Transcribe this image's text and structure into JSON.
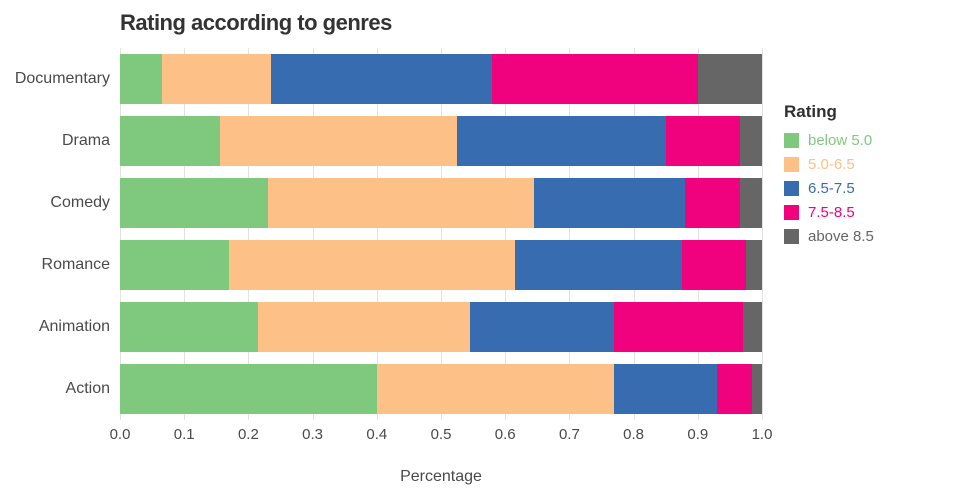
{
  "chart_data": {
    "type": "bar",
    "orientation": "horizontal_stacked",
    "title": "Rating according to genres",
    "xlabel": "Percentage",
    "ylabel": "",
    "legend_title": "Rating",
    "legend_position": "right",
    "grid": "vertical-light-gray",
    "xlim": [
      0.0,
      1.0
    ],
    "x_ticks": [
      "0.0",
      "0.1",
      "0.2",
      "0.3",
      "0.4",
      "0.5",
      "0.6",
      "0.7",
      "0.8",
      "0.9",
      "1.0"
    ],
    "categories": [
      "Documentary",
      "Drama",
      "Comedy",
      "Romance",
      "Animation",
      "Action"
    ],
    "series": [
      {
        "name": "below 5.0",
        "color": "#7fc97f",
        "values": [
          0.065,
          0.155,
          0.23,
          0.17,
          0.215,
          0.4
        ]
      },
      {
        "name": "5.0-6.5",
        "color": "#fdc086",
        "values": [
          0.17,
          0.37,
          0.415,
          0.445,
          0.33,
          0.37
        ]
      },
      {
        "name": "6.5-7.5",
        "color": "#386cb0",
        "values": [
          0.345,
          0.325,
          0.235,
          0.26,
          0.225,
          0.16
        ]
      },
      {
        "name": "7.5-8.5",
        "color": "#f0027f",
        "values": [
          0.32,
          0.115,
          0.085,
          0.1,
          0.2,
          0.055
        ]
      },
      {
        "name": "above 8.5",
        "color": "#666666",
        "values": [
          0.1,
          0.035,
          0.035,
          0.025,
          0.03,
          0.015
        ]
      }
    ]
  }
}
